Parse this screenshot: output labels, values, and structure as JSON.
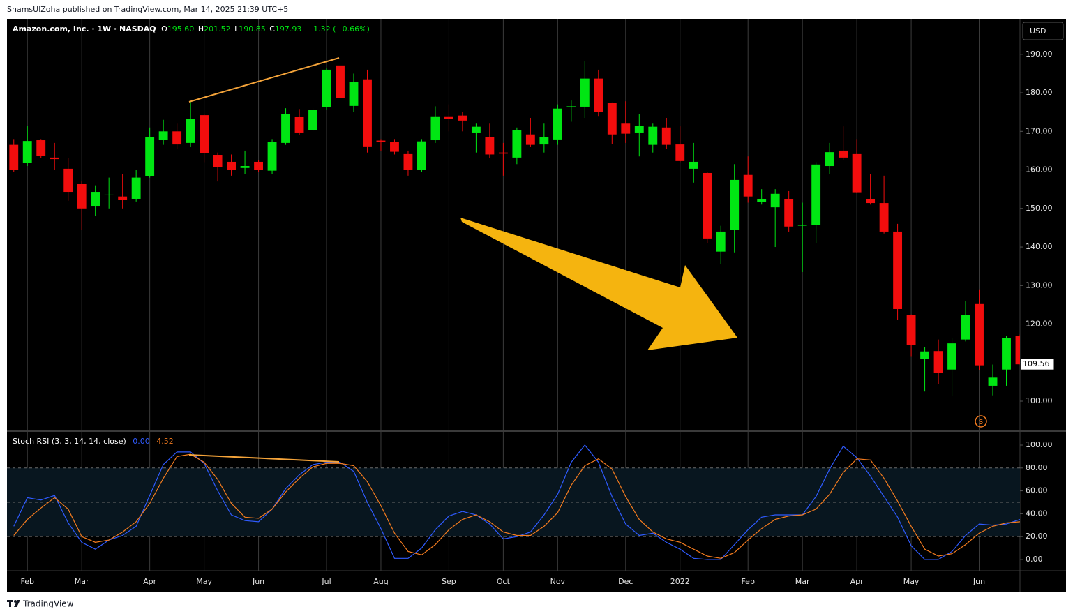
{
  "header": {
    "text": "ShamsUlZoha published on TradingView.com, Mar 14, 2025 21:39 UTC+5"
  },
  "footer": {
    "brand": "TradingView"
  },
  "chart_data": [
    {
      "type": "candlestick",
      "title": "Amazon.com, Inc. · 1W · NASDAQ",
      "readout": {
        "open": {
          "name": "O",
          "label": "195.60"
        },
        "high": {
          "name": "H",
          "label": "201.52"
        },
        "low": {
          "name": "L",
          "label": "190.85"
        },
        "close": {
          "name": "C",
          "label": "197.93"
        },
        "change": "−1.32 (−0.66%)"
      },
      "currency": "USD",
      "event_marker": "S",
      "last_price": {
        "value": 109.56,
        "label": "109.56"
      },
      "colors": {
        "up": "#00e613",
        "down": "#f20d0d"
      },
      "grid": "vertical",
      "categories": [
        null,
        "Feb",
        null,
        null,
        null,
        "Mar",
        null,
        null,
        null,
        null,
        "Apr",
        null,
        null,
        null,
        "May",
        null,
        null,
        null,
        "Jun",
        null,
        null,
        null,
        null,
        "Jul",
        null,
        null,
        null,
        "Aug",
        null,
        null,
        null,
        null,
        "Sep",
        null,
        null,
        null,
        "Oct",
        null,
        null,
        null,
        "Nov",
        null,
        null,
        null,
        null,
        "Dec",
        null,
        null,
        null,
        "2022",
        null,
        null,
        null,
        null,
        "Feb",
        null,
        null,
        null,
        "Mar",
        null,
        null,
        null,
        "Apr",
        null,
        null,
        null,
        "May",
        null,
        null,
        null,
        null,
        "Jun",
        null,
        null,
        null
      ],
      "open": [
        166.5,
        161.8,
        167.7,
        163.2,
        160.3,
        156.3,
        150.5,
        153.5,
        153.1,
        152.5,
        158.3,
        167.8,
        170,
        167,
        174.2,
        163.9,
        162.1,
        160.5,
        162.1,
        159.8,
        167,
        173.8,
        170.4,
        176.3,
        187.1,
        176.6,
        183.5,
        167.6,
        167.2,
        164.1,
        160.1,
        167.7,
        173.9,
        174.1,
        169.7,
        168.6,
        164.5,
        163.2,
        169.2,
        166.6,
        167.9,
        176.3,
        176.4,
        183.7,
        177.3,
        172,
        169.7,
        166.5,
        171,
        166.6,
        160.3,
        159.2,
        138.8,
        144.4,
        158.7,
        151.6,
        150.3,
        152.5,
        145.6,
        145.8,
        161,
        165,
        164.1,
        152.5,
        151.4,
        144,
        122.3,
        111,
        113,
        108.2,
        116,
        125.2,
        104,
        108.2,
        117
      ],
      "high": [
        168,
        171.5,
        168,
        167,
        163,
        157,
        156,
        158,
        159,
        160,
        171,
        173,
        172,
        177.8,
        174.5,
        164.5,
        164,
        165,
        162.5,
        168,
        176,
        175.8,
        176,
        186.5,
        188.6,
        185,
        186,
        168,
        168,
        165,
        168,
        176.5,
        177,
        175,
        172,
        172,
        167,
        171,
        173.5,
        172,
        177,
        178,
        188.3,
        186,
        177.5,
        177.8,
        174.5,
        172,
        173.5,
        171.3,
        167,
        159.5,
        145.5,
        161.5,
        163.5,
        155,
        155,
        154.5,
        151.5,
        162,
        167,
        171.3,
        168,
        159,
        158.5,
        146,
        122.5,
        114,
        116,
        116.3,
        125.9,
        129,
        109.5,
        117,
        117.3
      ],
      "low": [
        159.5,
        161,
        163,
        160,
        152,
        144.5,
        148,
        150,
        150,
        151.8,
        158,
        166.5,
        165.5,
        166,
        162,
        157,
        158.5,
        159,
        159.5,
        159,
        166.5,
        169,
        170,
        175.5,
        176.5,
        175,
        164.5,
        165,
        164,
        158.5,
        159.5,
        167,
        170,
        170,
        164.5,
        163,
        158.5,
        161.5,
        166,
        164.5,
        166.5,
        172.5,
        173.5,
        174,
        166.8,
        167,
        163.5,
        164.5,
        165.5,
        162,
        156.7,
        141,
        135.5,
        138.6,
        151.5,
        151,
        140,
        144,
        133.5,
        141,
        159,
        162.5,
        154,
        151,
        143.5,
        121,
        111.5,
        102.5,
        104.5,
        101.3,
        115.5,
        108,
        101.5,
        104,
        109.5
      ],
      "close": [
        160,
        167.5,
        163.6,
        162.8,
        154.3,
        150,
        154.3,
        153.6,
        152.3,
        158,
        168.5,
        170,
        166.6,
        173.3,
        164.3,
        160.8,
        160.1,
        161,
        160.1,
        167.2,
        174.4,
        169.7,
        175.5,
        186,
        178.6,
        182.8,
        166.1,
        167.2,
        164.7,
        160.1,
        167.4,
        173.9,
        173.2,
        172.8,
        171.2,
        164,
        164.2,
        170.3,
        166.5,
        168.5,
        175.9,
        176.5,
        183.7,
        175,
        169.2,
        169.4,
        171.5,
        171.2,
        166.5,
        162.3,
        162.1,
        142.2,
        144,
        157.4,
        153.1,
        152.5,
        153.8,
        145.3,
        145.7,
        161.4,
        164.6,
        163.2,
        154.2,
        151.4,
        144,
        123.9,
        114.5,
        112.9,
        107.4,
        115,
        122.3,
        109.3,
        106.1,
        116.3,
        109.56
      ],
      "ylim": [
        92.4,
        199.2
      ],
      "yticks": [
        {
          "value": 100,
          "label": "100.00"
        },
        {
          "value": 110,
          "label": "110.00"
        },
        {
          "value": 120,
          "label": "120.00"
        },
        {
          "value": 130,
          "label": "130.00"
        },
        {
          "value": 140,
          "label": "140.00"
        },
        {
          "value": 150,
          "label": "150.00"
        },
        {
          "value": 160,
          "label": "160.00"
        },
        {
          "value": 170,
          "label": "170.00"
        },
        {
          "value": 180,
          "label": "180.00"
        },
        {
          "value": 190,
          "label": "190.00"
        }
      ]
    },
    {
      "type": "line",
      "title": "Stoch RSI (3, 3, 14, 14, close)",
      "band": {
        "upper": 80,
        "middle": 50,
        "lower": 20,
        "color": "#08161f"
      },
      "series": [
        {
          "color": "#2f5bff",
          "readout": "0.00",
          "values": [
            29,
            54,
            52,
            56,
            32,
            15,
            9,
            17,
            21,
            29,
            56,
            83,
            94,
            94,
            84,
            60,
            39,
            34,
            33,
            44,
            62,
            74,
            83,
            85,
            85,
            77,
            50,
            27,
            1,
            1,
            10,
            26,
            38,
            42,
            39,
            31,
            18,
            20,
            24,
            39,
            57,
            85,
            100,
            85,
            55,
            31,
            21,
            23,
            15,
            9,
            1,
            0,
            0,
            13,
            26,
            37,
            39,
            39,
            39,
            55,
            79,
            99,
            89,
            73,
            55,
            37,
            12,
            0,
            0,
            7,
            21,
            31,
            30,
            31,
            35
          ]
        },
        {
          "color": "#f57c1f",
          "readout": "4.52",
          "values": [
            21,
            35,
            45,
            54,
            44,
            20,
            15,
            17,
            24,
            33,
            49,
            71,
            90,
            92,
            85,
            70,
            49,
            37,
            36,
            44,
            59,
            71,
            81,
            84,
            84,
            82,
            68,
            47,
            23,
            7,
            4,
            13,
            26,
            35,
            39,
            33,
            24,
            21,
            21,
            29,
            41,
            65,
            82,
            88,
            79,
            55,
            35,
            24,
            18,
            15,
            9,
            3,
            1,
            6,
            17,
            27,
            35,
            38,
            39,
            44,
            57,
            76,
            88,
            87,
            71,
            51,
            29,
            9,
            3,
            5,
            13,
            23,
            29,
            32,
            33
          ]
        }
      ],
      "ylim": [
        -9.8,
        111.6
      ],
      "yticks": [
        {
          "value": 0,
          "label": "0.00"
        },
        {
          "value": 20,
          "label": "20.00"
        },
        {
          "value": 40,
          "label": "40.00"
        },
        {
          "value": 60,
          "label": "60.00"
        },
        {
          "value": 80,
          "label": "80.00"
        },
        {
          "value": 100,
          "label": "100.00"
        }
      ]
    }
  ]
}
